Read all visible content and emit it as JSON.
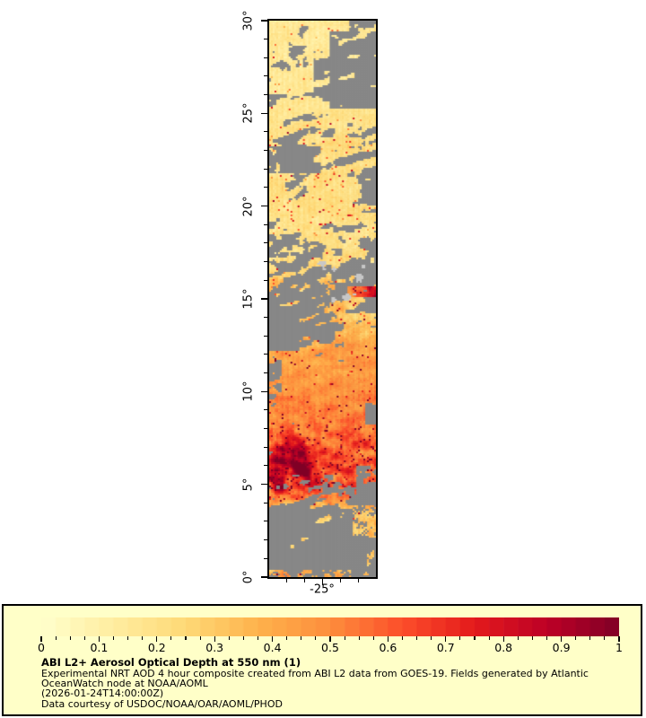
{
  "page": {
    "background": "#ffffff"
  },
  "legend": {
    "title": "ABI L2+ Aerosol Optical Depth at 550 nm (1)",
    "line1": "Experimental NRT AOD 4 hour composite created from ABI L2 data from GOES-19. Fields generated by Atlantic",
    "line2": "OceanWatch node at NOAA/AOML",
    "line3": "(2026-01-24T14:00:00Z)",
    "line4": "Data courtesy of USDOC/NOAA/OAR/AOML/PHOD",
    "panel_bg": "#ffffc8",
    "border_color": "#000000"
  },
  "chart_data": {
    "type": "heatmap",
    "title": "ABI L2+ Aerosol Optical Depth at 550 nm (1)",
    "variable": "Aerosol Optical Depth at 550 nm",
    "source": "ABI L2 data from GOES-19",
    "time_shown": "2026-01-24T14:00:00Z",
    "legend_position": "bottom",
    "grid": "off",
    "x_axis": {
      "range": [
        -28,
        -22
      ],
      "major_ticks": [
        -25
      ],
      "tick_label": "-25°",
      "minor_step": 1
    },
    "y_axis": {
      "range": [
        0,
        30
      ],
      "major_ticks": [
        0,
        5,
        10,
        15,
        20,
        25,
        30
      ],
      "tick_labels": [
        "0°",
        "5°",
        "10°",
        "15°",
        "20°",
        "25°",
        "30°"
      ],
      "minor_step": 1
    },
    "colorbar": {
      "min": 0,
      "max": 1,
      "steps": 40,
      "minor_step": 0.025,
      "major_ticks": [
        0,
        0.1,
        0.2,
        0.3,
        0.4,
        0.5,
        0.6,
        0.7,
        0.8,
        0.9,
        1
      ],
      "labels": [
        "0",
        "0.1",
        "0.2",
        "0.3",
        "0.4",
        "0.5",
        "0.6",
        "0.7",
        "0.8",
        "0.9",
        "1"
      ]
    },
    "colormap": [
      [
        0.0,
        "#ffffcc"
      ],
      [
        0.125,
        "#ffeda0"
      ],
      [
        0.25,
        "#fed976"
      ],
      [
        0.375,
        "#feb24c"
      ],
      [
        0.5,
        "#fd8d3c"
      ],
      [
        0.625,
        "#fc4e2a"
      ],
      [
        0.75,
        "#e31a1c"
      ],
      [
        0.875,
        "#bd0026"
      ],
      [
        1.0,
        "#800026"
      ]
    ],
    "no_data_color": "#878787",
    "island_color": "#c8c8c8",
    "field": {
      "seed": 7,
      "grid": [
        60,
        310
      ],
      "profile": [
        [
          0.0,
          0.1,
          0.3,
          0.15,
          0.03
        ],
        [
          0.4,
          0.03,
          0.25,
          0.12,
          0.01
        ],
        [
          1.5,
          0.01,
          0.22,
          0.1,
          0.0
        ],
        [
          2.6,
          0.03,
          0.24,
          0.12,
          0.01
        ],
        [
          3.4,
          0.07,
          0.26,
          0.15,
          0.03
        ],
        [
          4.3,
          0.5,
          0.5,
          0.22,
          0.08
        ],
        [
          5.2,
          0.85,
          0.6,
          0.25,
          0.1
        ],
        [
          6.3,
          0.97,
          0.62,
          0.25,
          0.08
        ],
        [
          7.5,
          0.98,
          0.58,
          0.22,
          0.06
        ],
        [
          9.0,
          0.98,
          0.5,
          0.12,
          0.02
        ],
        [
          10.5,
          0.97,
          0.47,
          0.1,
          0.01
        ],
        [
          11.8,
          0.88,
          0.44,
          0.1,
          0.02
        ],
        [
          12.8,
          0.55,
          0.4,
          0.12,
          0.03
        ],
        [
          13.8,
          0.22,
          0.34,
          0.12,
          0.04
        ],
        [
          14.6,
          0.2,
          0.3,
          0.12,
          0.05
        ],
        [
          15.3,
          0.1,
          0.3,
          0.12,
          0.04
        ],
        [
          15.8,
          0.22,
          0.32,
          0.14,
          0.06
        ],
        [
          16.5,
          0.15,
          0.26,
          0.1,
          0.03
        ],
        [
          17.1,
          0.28,
          0.21,
          0.08,
          0.03
        ],
        [
          17.9,
          0.45,
          0.2,
          0.08,
          0.03
        ],
        [
          18.7,
          0.62,
          0.2,
          0.08,
          0.03
        ],
        [
          19.5,
          0.72,
          0.21,
          0.08,
          0.04
        ],
        [
          20.8,
          0.74,
          0.2,
          0.07,
          0.03
        ],
        [
          21.8,
          0.62,
          0.21,
          0.08,
          0.05
        ],
        [
          22.6,
          0.45,
          0.2,
          0.07,
          0.04
        ],
        [
          23.3,
          0.5,
          0.22,
          0.09,
          0.06
        ],
        [
          24.2,
          0.62,
          0.19,
          0.06,
          0.02
        ],
        [
          25.2,
          0.78,
          0.17,
          0.05,
          0.01
        ],
        [
          26.5,
          0.82,
          0.15,
          0.05,
          0.01
        ],
        [
          27.6,
          0.75,
          0.15,
          0.05,
          0.01
        ],
        [
          28.6,
          0.82,
          0.15,
          0.05,
          0.01
        ],
        [
          30.0,
          0.85,
          0.16,
          0.05,
          0.01
        ]
      ],
      "wedges": [
        [
          25.3,
          29.4,
          -24.6,
          -22.0,
          0.1
        ],
        [
          26.0,
          28.4,
          -25.5,
          -24.55,
          0.45
        ],
        [
          28.8,
          30.0,
          -23.5,
          -22.0,
          0.3
        ],
        [
          21.8,
          23.2,
          -28.0,
          -25.1,
          0.5
        ],
        [
          19.6,
          21.4,
          -23.0,
          -22.0,
          0.45
        ],
        [
          9.6,
          11.9,
          -28.0,
          -27.3,
          0.3
        ],
        [
          4.3,
          6.0,
          -23.1,
          -22.0,
          0.3
        ],
        [
          8.2,
          9.4,
          -22.6,
          -22.0,
          0.35
        ],
        [
          12.2,
          13.8,
          -28.0,
          -26.3,
          0.45
        ],
        [
          12.1,
          14.2,
          -23.8,
          -22.0,
          2.6
        ]
      ],
      "overlays": [
        {
          "shape": "ellipse",
          "e": [
            -26.9,
            6.6,
            1.2,
            1.4
          ],
          "add": 0.38,
          "cover": 0
        },
        {
          "shape": "ellipse",
          "e": [
            -25.9,
            5.4,
            0.95,
            0.95
          ],
          "add": 0.3,
          "cover": 0
        },
        {
          "shape": "ellipse",
          "e": [
            -27.5,
            5.15,
            0.65,
            0.8
          ],
          "add": 0.3,
          "cover": 0
        },
        {
          "shape": "rect",
          "b": [
            -23.6,
            -22.03,
            15.05,
            15.68
          ],
          "add": 0.12,
          "addMax": 0.55,
          "cover": 0.8
        },
        {
          "shape": "rect",
          "b": [
            -23.3,
            -22.03,
            2.1,
            3.9
          ],
          "add": 0.04,
          "cover": 0.55
        },
        {
          "shape": "rect",
          "b": [
            -24.3,
            -23.55,
            3.05,
            3.6
          ],
          "add": 0.02,
          "cover": 0.3
        },
        {
          "shape": "rect",
          "b": [
            -28.0,
            -23.4,
            0.0,
            0.34
          ],
          "add": 0.12,
          "cover": 0.5
        },
        {
          "shape": "rect",
          "b": [
            -22.95,
            -22.45,
            0.05,
            0.32
          ],
          "add": 0.1,
          "cover": 0.5
        },
        {
          "shape": "rect",
          "b": [
            -22.5,
            -22.06,
            0.55,
            1.45
          ],
          "add": 0.08,
          "cover": 0.45
        },
        {
          "shape": "rect",
          "b": [
            -22.45,
            -22.03,
            1.9,
            2.6
          ],
          "add": 0.05,
          "cover": 0.25
        },
        {
          "shape": "ellipse",
          "e": [
            -24.6,
            14.55,
            1.1,
            0.45
          ],
          "add": 0.1,
          "cover": 0.55
        },
        {
          "shape": "ellipse",
          "e": [
            -24.3,
            15.75,
            1.0,
            0.45
          ],
          "add": 0.05,
          "cover": 0.5
        }
      ],
      "islands": [
        [
          -25.05,
          16.9,
          0.28,
          0.13
        ],
        [
          -24.93,
          16.62,
          0.12,
          0.1
        ],
        [
          -24.35,
          16.6,
          0.15,
          0.12
        ],
        [
          -22.95,
          16.15,
          0.22,
          0.25
        ],
        [
          -22.68,
          16.75,
          0.12,
          0.1
        ],
        [
          -23.62,
          15.1,
          0.25,
          0.18
        ],
        [
          -24.38,
          14.95,
          0.15,
          0.14
        ],
        [
          -23.2,
          15.25,
          0.1,
          0.08
        ]
      ]
    }
  }
}
